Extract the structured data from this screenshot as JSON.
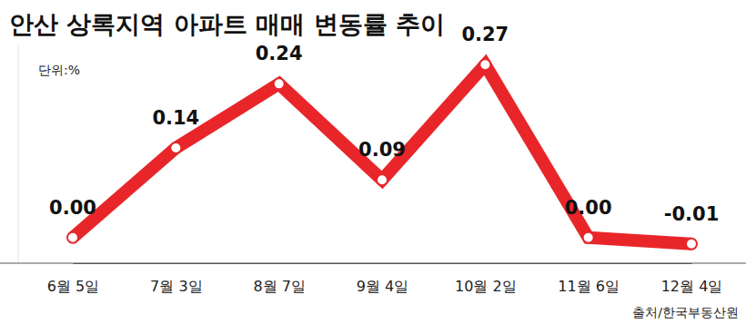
{
  "chart_data": {
    "type": "line",
    "title": "안산 상록지역 아파트 매매 변동률 추이",
    "unit_label": "단위:%",
    "source": "출처/한국부동산원",
    "categories": [
      "6월 5일",
      "7월 3일",
      "8월 7일",
      "9월 4일",
      "10월 2일",
      "11월 6일",
      "12월 4일"
    ],
    "values": [
      0.0,
      0.14,
      0.24,
      0.09,
      0.27,
      0.0,
      -0.01
    ],
    "value_labels": [
      "0.00",
      "0.14",
      "0.24",
      "0.09",
      "0.27",
      "0.00",
      "-0.01"
    ],
    "color": "#e8262a",
    "marker": "circle",
    "ylim": [
      -0.04,
      0.3
    ],
    "data_labels": true,
    "tick_labels": "x",
    "grid": false
  }
}
